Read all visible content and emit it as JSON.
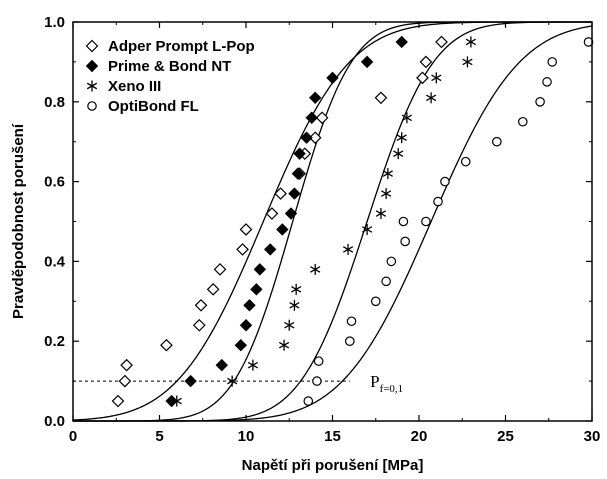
{
  "chart_data": {
    "type": "scatter",
    "xlabel": "Napětí při porušení [MPa]",
    "ylabel": "Pravděpodobnost porušení",
    "xlim": [
      0,
      30
    ],
    "ylim": [
      0.0,
      1.0
    ],
    "xticks": [
      0,
      5,
      10,
      15,
      20,
      25,
      30
    ],
    "yticks": [
      0.0,
      0.2,
      0.4,
      0.6,
      0.8,
      1.0
    ],
    "xtick_labels": [
      "0",
      "5",
      "10",
      "15",
      "20",
      "25",
      "30"
    ],
    "ytick_labels": [
      "0.0",
      "0.2",
      "0.4",
      "0.6",
      "0.8",
      "1.0"
    ],
    "grid": false,
    "legend_position": "top-left",
    "series": [
      {
        "name": "Adper Prompt L-Pop",
        "marker": "diamond-open",
        "points": [
          [
            2.6,
            0.05
          ],
          [
            3.0,
            0.1
          ],
          [
            3.1,
            0.14
          ],
          [
            5.4,
            0.19
          ],
          [
            7.3,
            0.24
          ],
          [
            7.4,
            0.29
          ],
          [
            8.1,
            0.33
          ],
          [
            8.5,
            0.38
          ],
          [
            9.8,
            0.43
          ],
          [
            10.0,
            0.48
          ],
          [
            11.5,
            0.52
          ],
          [
            12.0,
            0.57
          ],
          [
            13.1,
            0.62
          ],
          [
            13.4,
            0.67
          ],
          [
            14.0,
            0.71
          ],
          [
            14.4,
            0.76
          ],
          [
            17.8,
            0.81
          ],
          [
            20.2,
            0.86
          ],
          [
            20.4,
            0.9
          ],
          [
            21.3,
            0.95
          ]
        ],
        "fit": {
          "mean": 11.0,
          "sd": 3.9
        }
      },
      {
        "name": "Prime & Bond NT",
        "marker": "diamond-filled",
        "points": [
          [
            5.7,
            0.05
          ],
          [
            6.8,
            0.1
          ],
          [
            8.6,
            0.14
          ],
          [
            9.7,
            0.19
          ],
          [
            10.0,
            0.24
          ],
          [
            10.2,
            0.29
          ],
          [
            10.6,
            0.33
          ],
          [
            10.8,
            0.38
          ],
          [
            11.4,
            0.43
          ],
          [
            12.1,
            0.48
          ],
          [
            12.6,
            0.52
          ],
          [
            12.8,
            0.57
          ],
          [
            13.0,
            0.62
          ],
          [
            13.1,
            0.67
          ],
          [
            13.5,
            0.71
          ],
          [
            13.8,
            0.76
          ],
          [
            14.0,
            0.81
          ],
          [
            15.0,
            0.86
          ],
          [
            17.0,
            0.9
          ],
          [
            19.0,
            0.95
          ]
        ],
        "fit": {
          "mean": 12.7,
          "sd": 2.65
        }
      },
      {
        "name": "Xeno III",
        "marker": "asterisk",
        "points": [
          [
            6.0,
            0.05
          ],
          [
            9.2,
            0.1
          ],
          [
            10.4,
            0.14
          ],
          [
            12.2,
            0.19
          ],
          [
            12.5,
            0.24
          ],
          [
            12.8,
            0.29
          ],
          [
            12.9,
            0.33
          ],
          [
            14.0,
            0.38
          ],
          [
            15.9,
            0.43
          ],
          [
            17.0,
            0.48
          ],
          [
            17.8,
            0.52
          ],
          [
            18.1,
            0.57
          ],
          [
            18.2,
            0.62
          ],
          [
            18.8,
            0.67
          ],
          [
            19.0,
            0.71
          ],
          [
            19.3,
            0.76
          ],
          [
            20.7,
            0.81
          ],
          [
            21.0,
            0.86
          ],
          [
            22.8,
            0.9
          ],
          [
            23.0,
            0.95
          ]
        ],
        "fit": {
          "mean": 17.0,
          "sd": 3.0
        }
      },
      {
        "name": "OptiBond FL",
        "marker": "circle-open",
        "points": [
          [
            13.6,
            0.05
          ],
          [
            14.1,
            0.1
          ],
          [
            14.2,
            0.15
          ],
          [
            16.0,
            0.2
          ],
          [
            16.1,
            0.25
          ],
          [
            17.5,
            0.3
          ],
          [
            18.1,
            0.35
          ],
          [
            18.4,
            0.4
          ],
          [
            19.2,
            0.45
          ],
          [
            19.1,
            0.5
          ],
          [
            20.4,
            0.5
          ],
          [
            21.1,
            0.55
          ],
          [
            21.5,
            0.6
          ],
          [
            22.7,
            0.65
          ],
          [
            24.5,
            0.7
          ],
          [
            26.0,
            0.75
          ],
          [
            27.0,
            0.8
          ],
          [
            27.4,
            0.85
          ],
          [
            27.7,
            0.9
          ],
          [
            29.8,
            0.95
          ]
        ],
        "fit": {
          "mean": 20.7,
          "sd": 4.0
        }
      }
    ],
    "annotation": {
      "reference_line_y": 0.1,
      "reference_line_xrange": [
        0,
        16
      ],
      "label_main": "P",
      "label_sub": "f=0,1",
      "label_at": [
        17.0,
        0.1
      ]
    }
  }
}
